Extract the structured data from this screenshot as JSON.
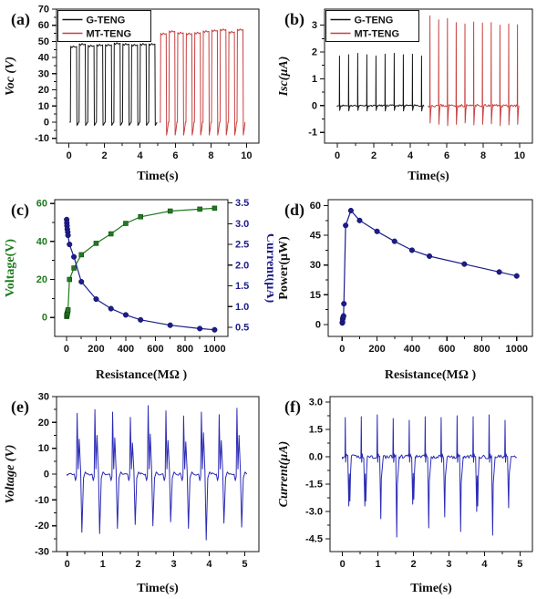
{
  "figure": {
    "background": "#ffffff",
    "description": "TENG electrical characterization figure with six panels"
  },
  "colors": {
    "black": "#141414",
    "red": "#c84040",
    "navy": "#1c1c8c",
    "green": "#1f7a1f",
    "blue_wave": "#2b2bb5",
    "text": "#111111"
  },
  "chart_data": [
    {
      "id": "a",
      "panel_label": "(a)",
      "type": "line",
      "xlabel": "Time(s)",
      "ylabel": "Voc (V)",
      "ylabel_style": "italic",
      "xlim": [
        -0.7,
        10.7
      ],
      "ylim": [
        -13,
        70
      ],
      "xticks": [
        0,
        2,
        4,
        6,
        8,
        10
      ],
      "yticks": [
        -10,
        0,
        10,
        20,
        30,
        40,
        50,
        60,
        70
      ],
      "legend": {
        "position": "top-left",
        "entries": [
          {
            "label": "G-TENG",
            "color": "#141414"
          },
          {
            "label": "MT-TENG",
            "color": "#c84040"
          }
        ]
      },
      "series": [
        {
          "name": "G-TENG",
          "color": "#141414",
          "waveform": "square",
          "start": 0.08,
          "period": 0.49,
          "high_duration": 0.35,
          "low": -2,
          "peaks": [
            47,
            48.5,
            47.5,
            48,
            48,
            49,
            48.5,
            48,
            48.5,
            48.5
          ]
        },
        {
          "name": "MT-TENG",
          "color": "#c84040",
          "waveform": "square",
          "start": 5.15,
          "period": 0.48,
          "high_duration": 0.33,
          "low": -8,
          "peaks": [
            55,
            56.5,
            55.5,
            55,
            55.5,
            56.5,
            57,
            57.5,
            56,
            57.5
          ]
        }
      ]
    },
    {
      "id": "b",
      "panel_label": "(b)",
      "type": "line",
      "xlabel": "Time(s)",
      "ylabel": "Isc(µA)",
      "ylabel_style": "italic",
      "xlim": [
        -0.7,
        10.7
      ],
      "ylim": [
        -1.4,
        3.6
      ],
      "xticks": [
        0,
        2,
        4,
        6,
        8,
        10
      ],
      "yticks": [
        -1,
        0,
        1,
        2,
        3
      ],
      "legend": {
        "position": "top-left",
        "entries": [
          {
            "label": "G-TENG",
            "color": "#141414"
          },
          {
            "label": "MT-TENG",
            "color": "#c84040"
          }
        ]
      },
      "series": [
        {
          "name": "G-TENG",
          "color": "#141414",
          "waveform": "spike",
          "start": 0.12,
          "period": 0.5,
          "base_start": 0,
          "end": 4.8,
          "noise": 0.03,
          "seed": 11,
          "peaks": [
            1.85,
            1.9,
            1.95,
            1.9,
            1.85,
            1.92,
            1.95,
            1.9,
            1.92,
            1.85
          ],
          "undershoot": [
            -0.18,
            -0.2,
            -0.18,
            -0.2,
            -0.18,
            -0.2,
            -0.18,
            -0.2,
            -0.18,
            -0.2
          ]
        },
        {
          "name": "MT-TENG",
          "color": "#c84040",
          "waveform": "spike",
          "start": 5.08,
          "period": 0.48,
          "base_start": 5.0,
          "end": 9.95,
          "noise": 0.05,
          "seed": 23,
          "peaks": [
            3.35,
            3.2,
            3.25,
            3.1,
            3.05,
            3.12,
            3.08,
            3.1,
            3.0,
            3.05,
            3.02
          ],
          "undershoot": [
            -0.65,
            -0.7,
            -0.75,
            -0.7,
            -0.65,
            -0.72,
            -0.7,
            -0.68,
            -0.75,
            -0.72,
            -0.7
          ]
        }
      ]
    },
    {
      "id": "c",
      "panel_label": "(c)",
      "type": "line-scatter",
      "xlabel": "Resistance(MΩ )",
      "ylabel": "Voltage(V)",
      "ylabel_color": "#1f7a1f",
      "ytick_color": "#1f7a1f",
      "y2label": "Current(µA)",
      "y2label_color": "#1c1c8c",
      "y2tick_color": "#1c1c8c",
      "xlim": [
        -80,
        1090
      ],
      "ylim": [
        -10,
        62
      ],
      "y2lim": [
        0.28,
        3.58
      ],
      "xticks": [
        0,
        200,
        400,
        600,
        800,
        1000
      ],
      "yticks": [
        0,
        20,
        40,
        60
      ],
      "y2ticks": [
        0.5,
        1.0,
        1.5,
        2.0,
        2.5,
        3.0,
        3.5
      ],
      "y2tick_labels": [
        "0.5",
        "1.0",
        "1.5",
        "2.0",
        "2.5",
        "3.0",
        "3.5"
      ],
      "series": [
        {
          "name": "Voltage",
          "axis": "y1",
          "color": "#1f7a1f",
          "marker": "square",
          "x": [
            1,
            2,
            3,
            5,
            8,
            10,
            20,
            50,
            100,
            200,
            300,
            400,
            500,
            700,
            900,
            1000
          ],
          "y": [
            0.5,
            1,
            1.5,
            2,
            3,
            4,
            20,
            26,
            33,
            39,
            44,
            49.5,
            53,
            56,
            57,
            57.5
          ]
        },
        {
          "name": "Current",
          "axis": "y2",
          "color": "#1c1c8c",
          "marker": "circle",
          "x": [
            1,
            2,
            3,
            5,
            8,
            10,
            20,
            50,
            100,
            200,
            300,
            400,
            500,
            700,
            900,
            1000
          ],
          "y": [
            3.1,
            3.02,
            2.95,
            2.87,
            2.8,
            2.72,
            2.5,
            2.2,
            1.6,
            1.18,
            0.95,
            0.8,
            0.68,
            0.55,
            0.47,
            0.44
          ]
        }
      ]
    },
    {
      "id": "d",
      "panel_label": "(d)",
      "type": "line-scatter",
      "xlabel": "Resistance(MΩ )",
      "ylabel": "Power(µW)",
      "xlim": [
        -80,
        1090
      ],
      "ylim": [
        -6,
        63
      ],
      "xticks": [
        0,
        200,
        400,
        600,
        800,
        1000
      ],
      "yticks": [
        0,
        15,
        30,
        45,
        60
      ],
      "series": [
        {
          "name": "Power",
          "axis": "y1",
          "color": "#1c1c8c",
          "marker": "circle",
          "x": [
            1,
            2,
            3,
            5,
            8,
            10,
            20,
            50,
            100,
            200,
            300,
            400,
            500,
            700,
            900,
            1000
          ],
          "y": [
            0.8,
            1.3,
            2.8,
            3.5,
            4.3,
            10.5,
            50,
            57.5,
            52.5,
            47,
            42,
            37.5,
            34.5,
            30.5,
            26.5,
            24.5
          ]
        }
      ]
    },
    {
      "id": "e",
      "panel_label": "(e)",
      "type": "line",
      "xlabel": "Time(s)",
      "ylabel": "Voltage (V)",
      "ylabel_style": "italic",
      "xlim": [
        -0.3,
        5.4
      ],
      "ylim": [
        -30,
        30
      ],
      "xticks": [
        0,
        1,
        2,
        3,
        4,
        5
      ],
      "yticks": [
        -30,
        -20,
        -10,
        0,
        10,
        20,
        30
      ],
      "series": [
        {
          "name": "Voltage",
          "color": "#2b2bb5",
          "waveform": "bipolar",
          "start": 0.28,
          "period": 0.5,
          "end": 5.0,
          "predip": -2.5,
          "noise": 0.5,
          "seed": 5,
          "pos": [
            23.5,
            25,
            24,
            22,
            26.5,
            24.5,
            22.5,
            24,
            23,
            25.5
          ],
          "pos2": [
            13.5,
            15,
            14,
            12,
            15.5,
            13,
            12.5,
            16,
            13,
            15
          ],
          "neg": [
            -22.5,
            -23,
            -21,
            -19.5,
            -20,
            -18.5,
            -21,
            -25.5,
            -19,
            -20.5
          ]
        }
      ]
    },
    {
      "id": "f",
      "panel_label": "(f)",
      "type": "line",
      "xlabel": "Time(s)",
      "ylabel": "Current(µA)",
      "ylabel_style": "italic",
      "xlim": [
        -0.35,
        5.35
      ],
      "ylim": [
        -5.2,
        3.3
      ],
      "xticks": [
        0,
        1,
        2,
        3,
        4,
        5
      ],
      "yticks": [
        3.0,
        1.5,
        0.0,
        -1.5,
        -3.0,
        -4.5
      ],
      "ytick_labels": [
        "3.0",
        "1.5",
        "0.0",
        "-1.5",
        "-3.0",
        "-4.5"
      ],
      "series": [
        {
          "name": "Current",
          "color": "#2b2bb5",
          "waveform": "pulse",
          "start": 0.08,
          "period": 0.45,
          "end": 4.93,
          "noise": 0.11,
          "seed": 41,
          "pos": [
            2.15,
            2.2,
            2.3,
            2.1,
            2.0,
            2.2,
            2.15,
            2.25,
            2.2,
            2.3,
            2.0
          ],
          "neg": [
            -2.7,
            -2.7,
            -3.4,
            -4.4,
            -2.6,
            -3.9,
            -3.3,
            -4.1,
            -3.0,
            -4.3,
            -2.8
          ],
          "double_neg": [
            0,
            1,
            4,
            8
          ]
        }
      ]
    }
  ]
}
